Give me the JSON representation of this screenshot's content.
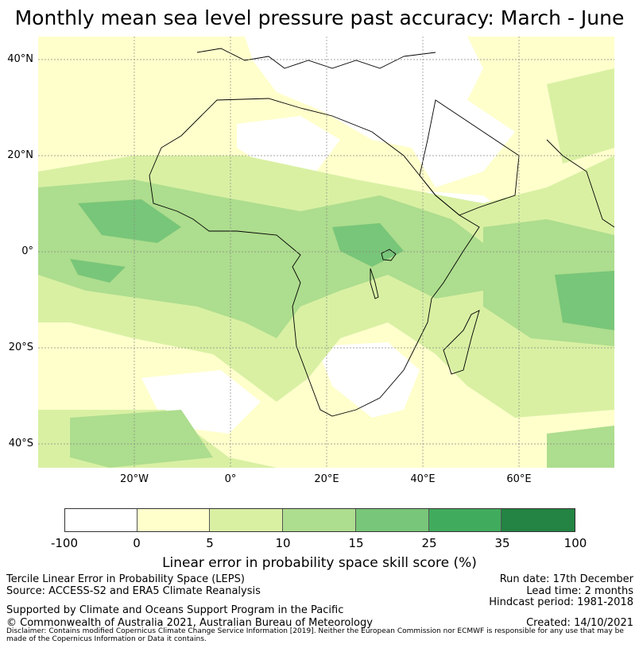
{
  "title": "Monthly mean sea level pressure past accuracy: March - June",
  "map": {
    "lat_labels": [
      "40°N",
      "20°N",
      "0°",
      "20°S",
      "40°S"
    ],
    "lon_labels": [
      "20°W",
      "0°",
      "20°E",
      "40°E",
      "60°E"
    ],
    "extent": {
      "lon_min": -40,
      "lon_max": 80,
      "lat_min": -45,
      "lat_max": 45
    },
    "gridlines": true
  },
  "colorbar": {
    "tick_labels": [
      "-100",
      "0",
      "5",
      "10",
      "15",
      "25",
      "35",
      "100"
    ],
    "colors": [
      "#ffffff",
      "#ffffcc",
      "#d9f0a3",
      "#addd8e",
      "#78c679",
      "#41ab5d",
      "#238443"
    ],
    "label": "Linear error in probability space skill score (%)"
  },
  "footer": {
    "method": "Tercile Linear Error in Probability Space (LEPS)",
    "source": "Source: ACCESS-S2 and ERA5 Climate Reanalysis",
    "run_date": "Run date: 17th December",
    "lead_time": "Lead time: 2 months",
    "hindcast": "Hindcast period: 1981-2018",
    "support": "Supported by Climate and Oceans Support Program in the Pacific",
    "copyright": "© Commonwealth of Australia 2021, Australian Bureau of Meteorology",
    "created": "Created: 14/10/2021",
    "disclaimer": "Disclaimer: Contains modified Copernicus Climate Change Service Information [2019]. Neither the European Commission nor ECMWF is responsible for any use that may be made of the Copernicus Information or Data it contains."
  }
}
